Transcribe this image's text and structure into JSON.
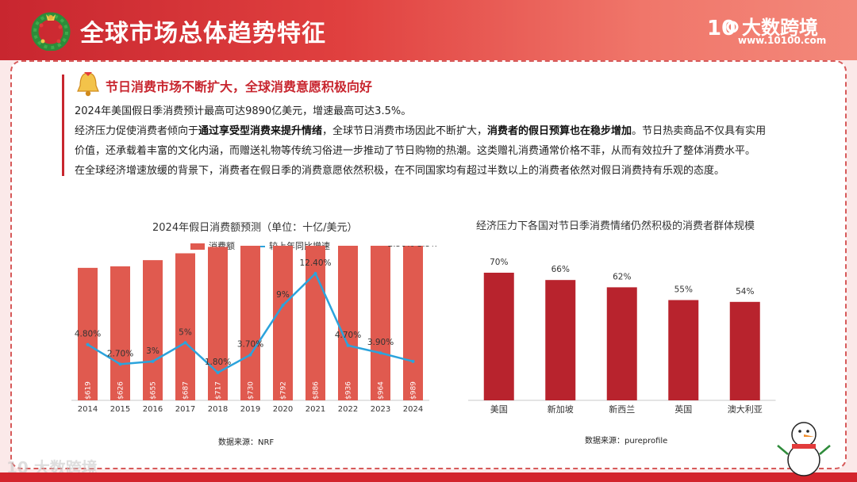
{
  "header": {
    "title": "全球市场总体趋势特征",
    "brand_name": "大数跨境",
    "brand_url": "www.10100.com",
    "logo_text": "10"
  },
  "section": {
    "title": "节日消费市场不断扩大，全球消费意愿积极向好",
    "line1": "2024年美国假日季消费预计最高可达9890亿美元，增速最高可达3.5%。",
    "line2_a": "经济压力促使消费者倾向于",
    "line2_b": "通过享受型消费来提升情绪",
    "line2_c": "，全球节日消费市场因此不断扩大，",
    "line2_d": "消费者的假日预算也在稳步增加",
    "line2_e": "。节日热卖商品不仅具有实用",
    "line3": "价值，还承载着丰富的文化内涵，而赠送礼物等传统习俗进一步推动了节日购物的热潮。这类赠礼消费通常价格不菲，从而有效拉升了整体消费水平。",
    "line4": "在全球经济增速放缓的背景下，消费者在假日季的消费意愿依然积极，在不同国家均有超过半数以上的消费者依然对假日消费持有乐观的态度。"
  },
  "footer": {
    "logo_text": "大数跨境",
    "logo_num": "10"
  },
  "chart_data": [
    {
      "type": "bar",
      "title": "2024年假日消费额预测（单位：十亿/美元）",
      "legend": [
        "消费额",
        "较上年同比增速"
      ],
      "legend_position": "top",
      "categories": [
        "2014",
        "2015",
        "2016",
        "2017",
        "2018",
        "2019",
        "2020",
        "2021",
        "2022",
        "2023",
        "2024"
      ],
      "series": [
        {
          "name": "消费额",
          "type": "bar",
          "color": "#e05a4f",
          "values": [
            619,
            626,
            655,
            687,
            717,
            730,
            792,
            886,
            936,
            964,
            989
          ],
          "value_labels": [
            "$619",
            "$626",
            "$655",
            "$687",
            "$717",
            "$730",
            "$792",
            "$886",
            "$936",
            "$964",
            "$989"
          ]
        },
        {
          "name": "较上年同比增速",
          "type": "line",
          "color": "#2ba3dc",
          "values": [
            4.8,
            2.7,
            3.0,
            5.0,
            1.8,
            3.7,
            9.0,
            12.4,
            4.7,
            3.9,
            3.0
          ],
          "value_labels": [
            "4.80%",
            "2.70%",
            "3%",
            "5%",
            "1.80%",
            "3.70%",
            "9%",
            "12.40%",
            "4.70%",
            "3.90%",
            "2.50%-3.5%"
          ]
        }
      ],
      "source": "数据来源：NRF"
    },
    {
      "type": "bar",
      "title": "经济压力下各国对节日季消费情绪仍然积极的消费者群体规模",
      "categories": [
        "美国",
        "新加坡",
        "新西兰",
        "英国",
        "澳大利亚"
      ],
      "values": [
        70,
        66,
        62,
        55,
        54
      ],
      "value_labels": [
        "70%",
        "66%",
        "62%",
        "55%",
        "54%"
      ],
      "color": "#b8232d",
      "source": "数据来源：pureprofile"
    }
  ]
}
